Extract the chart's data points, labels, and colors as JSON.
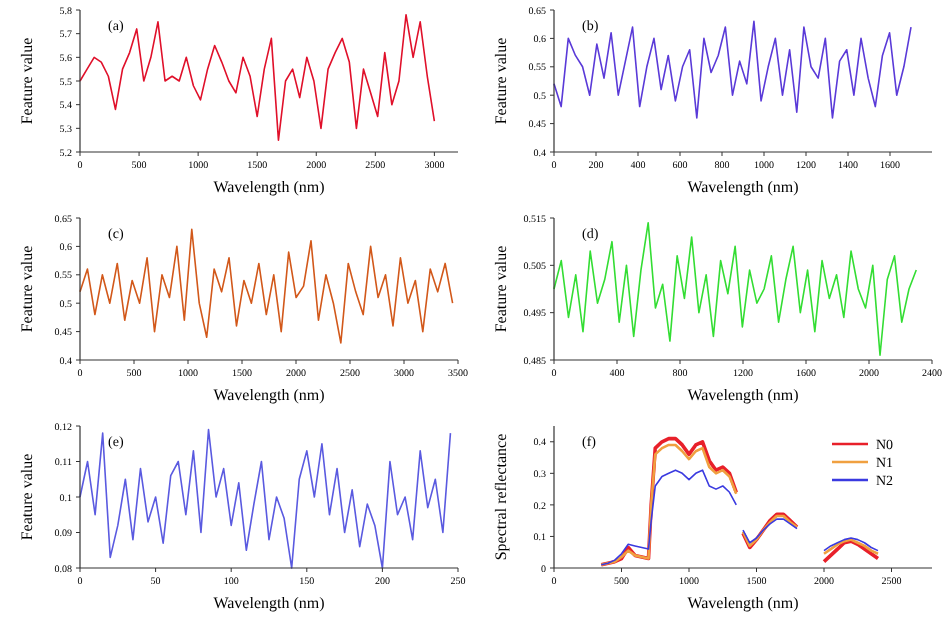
{
  "chart_data": [
    {
      "type": "line",
      "annotations": [
        "(a)"
      ],
      "xlabel": "Wavelength (nm)",
      "ylabel": "Feature value",
      "color": "#e0102a",
      "xlim": [
        0,
        3200
      ],
      "xticks": [
        0,
        500,
        1000,
        1500,
        2000,
        2500,
        3000
      ],
      "ylim": [
        5.2,
        5.8
      ],
      "yticks": [
        5.2,
        5.3,
        5.4,
        5.5,
        5.6,
        5.7,
        5.8
      ],
      "x": [
        0,
        60,
        120,
        180,
        240,
        300,
        360,
        420,
        480,
        540,
        600,
        660,
        720,
        780,
        840,
        900,
        960,
        1020,
        1080,
        1140,
        1200,
        1260,
        1320,
        1380,
        1440,
        1500,
        1560,
        1620,
        1680,
        1740,
        1800,
        1860,
        1920,
        1980,
        2040,
        2100,
        2160,
        2220,
        2280,
        2340,
        2400,
        2460,
        2520,
        2580,
        2640,
        2700,
        2760,
        2820,
        2880,
        2940,
        3000
      ],
      "values": [
        5.5,
        5.55,
        5.6,
        5.58,
        5.52,
        5.38,
        5.55,
        5.62,
        5.72,
        5.5,
        5.6,
        5.75,
        5.5,
        5.52,
        5.5,
        5.6,
        5.48,
        5.42,
        5.55,
        5.65,
        5.58,
        5.5,
        5.45,
        5.6,
        5.52,
        5.35,
        5.55,
        5.68,
        5.25,
        5.5,
        5.55,
        5.43,
        5.6,
        5.5,
        5.3,
        5.55,
        5.62,
        5.68,
        5.58,
        5.3,
        5.55,
        5.45,
        5.35,
        5.62,
        5.4,
        5.5,
        5.78,
        5.6,
        5.75,
        5.52,
        5.33
      ]
    },
    {
      "type": "line",
      "annotations": [
        "(b)"
      ],
      "xlabel": "Wavelength (nm)",
      "ylabel": "Feature value",
      "color": "#5a3ad8",
      "xlim": [
        0,
        1800
      ],
      "xticks": [
        0,
        200,
        400,
        600,
        800,
        1000,
        1200,
        1400,
        1600
      ],
      "ylim": [
        0.4,
        0.65
      ],
      "yticks": [
        0.4,
        0.45,
        0.5,
        0.55,
        0.6,
        0.65
      ],
      "x": [
        0,
        34,
        68,
        102,
        136,
        170,
        204,
        238,
        272,
        306,
        340,
        374,
        408,
        442,
        476,
        510,
        544,
        578,
        612,
        646,
        680,
        714,
        748,
        782,
        816,
        850,
        884,
        918,
        952,
        986,
        1020,
        1054,
        1088,
        1122,
        1156,
        1190,
        1224,
        1258,
        1292,
        1326,
        1360,
        1394,
        1428,
        1462,
        1496,
        1530,
        1564,
        1598,
        1632,
        1666,
        1700
      ],
      "values": [
        0.52,
        0.48,
        0.6,
        0.57,
        0.55,
        0.5,
        0.59,
        0.53,
        0.61,
        0.5,
        0.56,
        0.62,
        0.48,
        0.55,
        0.6,
        0.51,
        0.57,
        0.49,
        0.55,
        0.58,
        0.46,
        0.6,
        0.54,
        0.57,
        0.62,
        0.5,
        0.56,
        0.52,
        0.63,
        0.49,
        0.55,
        0.6,
        0.5,
        0.58,
        0.47,
        0.62,
        0.55,
        0.53,
        0.6,
        0.46,
        0.56,
        0.58,
        0.5,
        0.6,
        0.53,
        0.48,
        0.57,
        0.61,
        0.5,
        0.55,
        0.62
      ]
    },
    {
      "type": "line",
      "annotations": [
        "(c)"
      ],
      "xlabel": "Wavelength (nm)",
      "ylabel": "Feature value",
      "color": "#d2581a",
      "xlim": [
        0,
        3500
      ],
      "xticks": [
        0,
        500,
        1000,
        1500,
        2000,
        2500,
        3000,
        3500
      ],
      "ylim": [
        0.4,
        0.65
      ],
      "yticks": [
        0.4,
        0.45,
        0.5,
        0.55,
        0.6,
        0.65
      ],
      "x": [
        0,
        69,
        138,
        207,
        276,
        345,
        414,
        483,
        552,
        621,
        690,
        759,
        828,
        897,
        966,
        1035,
        1104,
        1173,
        1242,
        1311,
        1380,
        1449,
        1518,
        1587,
        1656,
        1725,
        1794,
        1863,
        1932,
        2001,
        2070,
        2139,
        2208,
        2277,
        2346,
        2415,
        2484,
        2553,
        2622,
        2691,
        2760,
        2829,
        2898,
        2967,
        3036,
        3105,
        3174,
        3243,
        3312,
        3381,
        3450
      ],
      "values": [
        0.52,
        0.56,
        0.48,
        0.55,
        0.5,
        0.57,
        0.47,
        0.54,
        0.5,
        0.58,
        0.45,
        0.55,
        0.51,
        0.6,
        0.47,
        0.63,
        0.5,
        0.44,
        0.56,
        0.52,
        0.58,
        0.46,
        0.54,
        0.5,
        0.57,
        0.48,
        0.55,
        0.45,
        0.59,
        0.51,
        0.53,
        0.61,
        0.47,
        0.55,
        0.5,
        0.43,
        0.57,
        0.52,
        0.48,
        0.6,
        0.51,
        0.55,
        0.46,
        0.58,
        0.5,
        0.54,
        0.45,
        0.56,
        0.52,
        0.57,
        0.5
      ]
    },
    {
      "type": "line",
      "annotations": [
        "(d)"
      ],
      "xlabel": "Wavelength (nm)",
      "ylabel": "Feature value",
      "color": "#33dd33",
      "xlim": [
        0,
        2400
      ],
      "xticks": [
        0,
        400,
        800,
        1200,
        1600,
        2000,
        2400
      ],
      "ylim": [
        0.485,
        0.515
      ],
      "yticks": [
        0.485,
        0.495,
        0.505,
        0.515
      ],
      "x": [
        0,
        46,
        92,
        138,
        184,
        230,
        276,
        322,
        368,
        414,
        460,
        506,
        552,
        598,
        644,
        690,
        736,
        782,
        828,
        874,
        920,
        966,
        1012,
        1058,
        1104,
        1150,
        1196,
        1242,
        1288,
        1334,
        1380,
        1426,
        1472,
        1518,
        1564,
        1610,
        1656,
        1702,
        1748,
        1794,
        1840,
        1886,
        1932,
        1978,
        2024,
        2070,
        2116,
        2162,
        2208,
        2254,
        2300
      ],
      "values": [
        0.5,
        0.506,
        0.494,
        0.503,
        0.491,
        0.508,
        0.497,
        0.502,
        0.51,
        0.493,
        0.505,
        0.49,
        0.504,
        0.514,
        0.496,
        0.501,
        0.489,
        0.507,
        0.498,
        0.511,
        0.495,
        0.503,
        0.49,
        0.506,
        0.499,
        0.509,
        0.492,
        0.504,
        0.497,
        0.5,
        0.507,
        0.493,
        0.502,
        0.509,
        0.495,
        0.504,
        0.491,
        0.506,
        0.498,
        0.503,
        0.494,
        0.508,
        0.5,
        0.496,
        0.505,
        0.486,
        0.502,
        0.507,
        0.493,
        0.5,
        0.504
      ]
    },
    {
      "type": "line",
      "annotations": [
        "(e)"
      ],
      "xlabel": "Wavelength (nm)",
      "ylabel": "Feature value",
      "color": "#5a5ae0",
      "xlim": [
        0,
        250
      ],
      "xticks": [
        0,
        50,
        100,
        150,
        200,
        250
      ],
      "ylim": [
        0.08,
        0.12
      ],
      "yticks": [
        0.08,
        0.09,
        0.1,
        0.11,
        0.12
      ],
      "x": [
        0,
        5,
        10,
        15,
        20,
        25,
        30,
        35,
        40,
        45,
        50,
        55,
        60,
        65,
        70,
        75,
        80,
        85,
        90,
        95,
        100,
        105,
        110,
        115,
        120,
        125,
        130,
        135,
        140,
        145,
        150,
        155,
        160,
        165,
        170,
        175,
        180,
        185,
        190,
        195,
        200,
        205,
        210,
        215,
        220,
        225,
        230,
        235,
        240,
        245
      ],
      "values": [
        0.1,
        0.11,
        0.095,
        0.118,
        0.083,
        0.092,
        0.105,
        0.088,
        0.108,
        0.093,
        0.1,
        0.087,
        0.106,
        0.11,
        0.095,
        0.113,
        0.09,
        0.119,
        0.1,
        0.108,
        0.092,
        0.104,
        0.085,
        0.098,
        0.11,
        0.088,
        0.1,
        0.094,
        0.08,
        0.105,
        0.113,
        0.1,
        0.115,
        0.095,
        0.108,
        0.09,
        0.102,
        0.086,
        0.098,
        0.092,
        0.08,
        0.11,
        0.095,
        0.1,
        0.088,
        0.113,
        0.097,
        0.105,
        0.09,
        0.118
      ]
    },
    {
      "type": "line",
      "annotations": [
        "(f)"
      ],
      "xlabel": "Wavelength (nm)",
      "ylabel": "Spectral reflectance",
      "legend": "top right",
      "xlim": [
        0,
        2800
      ],
      "xticks": [
        0,
        500,
        1000,
        1500,
        2000,
        2500
      ],
      "ylim": [
        0,
        0.45
      ],
      "yticks": [
        0,
        0.1,
        0.2,
        0.3,
        0.4
      ],
      "x": [
        350,
        400,
        450,
        500,
        550,
        600,
        650,
        700,
        720,
        750,
        800,
        850,
        900,
        950,
        1000,
        1050,
        1100,
        1150,
        1200,
        1250,
        1300,
        1350,
        1370,
        1400,
        1450,
        1500,
        1550,
        1600,
        1650,
        1700,
        1750,
        1800,
        1900,
        2000,
        2050,
        2100,
        2150,
        2200,
        2250,
        2300,
        2350,
        2400
      ],
      "series": [
        {
          "name": "N0",
          "color": "#e8202a",
          "values": [
            0.01,
            0.015,
            0.02,
            0.03,
            0.065,
            0.04,
            0.035,
            0.03,
            0.2,
            0.38,
            0.4,
            0.41,
            0.41,
            0.39,
            0.36,
            0.39,
            0.4,
            0.34,
            0.31,
            0.32,
            0.3,
            0.24,
            null,
            0.11,
            0.065,
            0.09,
            0.12,
            0.15,
            0.17,
            0.17,
            0.15,
            0.13,
            null,
            0.02,
            0.04,
            0.06,
            0.08,
            0.085,
            0.075,
            0.06,
            0.045,
            0.03
          ]
        },
        {
          "name": "N1",
          "color": "#f0a040",
          "values": [
            0.01,
            0.015,
            0.02,
            0.035,
            0.055,
            0.04,
            0.035,
            0.03,
            0.2,
            0.36,
            0.38,
            0.39,
            0.39,
            0.37,
            0.345,
            0.37,
            0.38,
            0.32,
            0.3,
            0.31,
            0.29,
            0.235,
            null,
            0.115,
            0.07,
            0.09,
            0.12,
            0.145,
            0.165,
            0.165,
            0.145,
            0.13,
            null,
            0.045,
            0.06,
            0.075,
            0.085,
            0.09,
            0.08,
            0.07,
            0.055,
            0.045
          ]
        },
        {
          "name": "N2",
          "color": "#3a3ae0",
          "values": [
            0.01,
            0.015,
            0.025,
            0.045,
            0.075,
            0.07,
            0.065,
            0.06,
            0.15,
            0.26,
            0.29,
            0.3,
            0.31,
            0.3,
            0.28,
            0.3,
            0.31,
            0.26,
            0.25,
            0.26,
            0.24,
            0.2,
            null,
            0.12,
            0.08,
            0.095,
            0.12,
            0.14,
            0.155,
            0.155,
            0.14,
            0.125,
            null,
            0.055,
            0.07,
            0.08,
            0.09,
            0.095,
            0.09,
            0.08,
            0.065,
            0.055
          ]
        }
      ]
    }
  ]
}
